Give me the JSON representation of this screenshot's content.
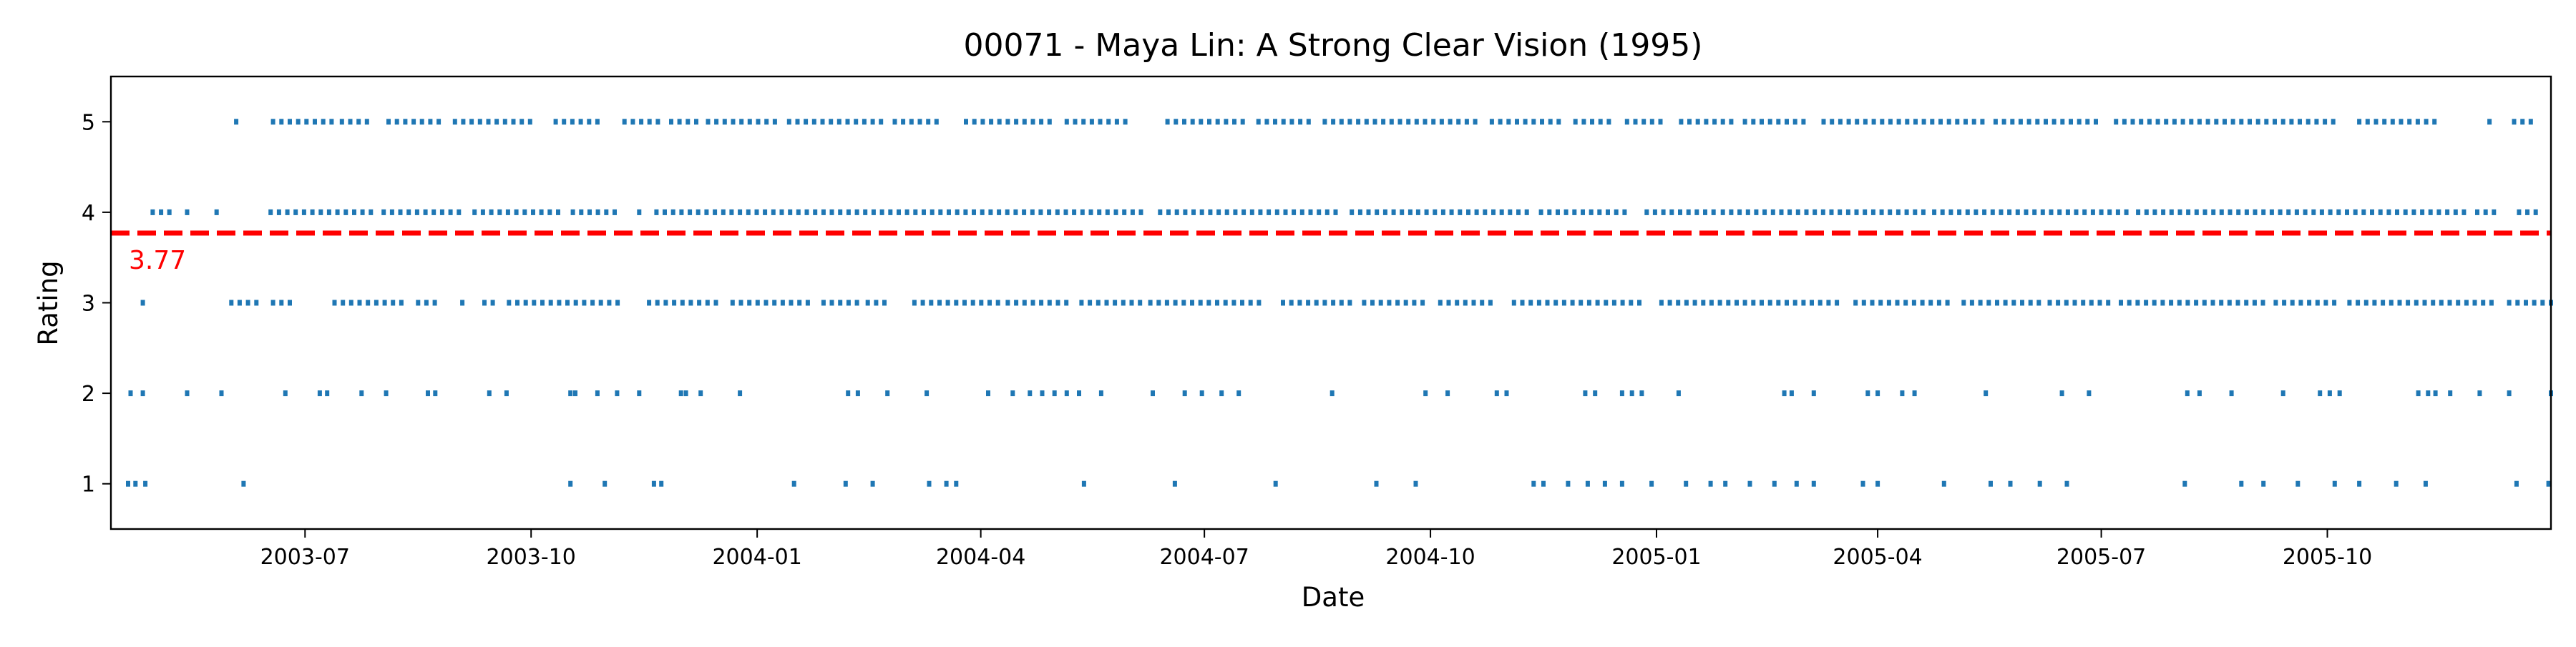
{
  "chart_data": {
    "type": "scatter",
    "title": "00071 - Maya Lin: A Strong Clear Vision (1995)",
    "xlabel": "Date",
    "ylabel": "Rating",
    "xlim": [
      "2003-04-13",
      "2005-12-31"
    ],
    "ylim": [
      0.5,
      5.5
    ],
    "x_ticks": [
      "2003-07",
      "2003-10",
      "2004-01",
      "2004-04",
      "2004-07",
      "2004-10",
      "2005-01",
      "2005-04",
      "2005-07",
      "2005-10"
    ],
    "y_ticks": [
      1,
      2,
      3,
      4,
      5
    ],
    "grid": false,
    "point_color": "#1f77b4",
    "mean": {
      "value": 3.77,
      "label": "3.77",
      "color": "#ff0000",
      "style": "dashed"
    },
    "series": [
      {
        "rating": 5,
        "ranges": [
          [
            "2003-06-03",
            "2003-06-03"
          ],
          [
            "2003-06-18",
            "2003-07-12"
          ],
          [
            "2003-07-16",
            "2003-07-28"
          ],
          [
            "2003-08-04",
            "2003-08-27"
          ],
          [
            "2003-08-31",
            "2003-10-01"
          ],
          [
            "2003-10-11",
            "2003-10-28"
          ],
          [
            "2003-11-08",
            "2003-11-22"
          ],
          [
            "2003-11-27",
            "2003-12-09"
          ],
          [
            "2003-12-12",
            "2004-01-09"
          ],
          [
            "2004-01-14",
            "2004-02-21"
          ],
          [
            "2004-02-26",
            "2004-03-15"
          ],
          [
            "2004-03-26",
            "2004-05-01"
          ],
          [
            "2004-05-06",
            "2004-06-01"
          ],
          [
            "2004-06-16",
            "2004-07-18"
          ],
          [
            "2004-07-23",
            "2004-08-14"
          ],
          [
            "2004-08-19",
            "2004-10-21"
          ],
          [
            "2004-10-26",
            "2004-11-23"
          ],
          [
            "2004-11-29",
            "2004-12-13"
          ],
          [
            "2004-12-20",
            "2005-01-04"
          ],
          [
            "2005-01-11",
            "2005-02-01"
          ],
          [
            "2005-02-06",
            "2005-03-05"
          ],
          [
            "2005-03-10",
            "2005-05-14"
          ],
          [
            "2005-05-19",
            "2005-07-01"
          ],
          [
            "2005-07-07",
            "2005-10-04"
          ],
          [
            "2005-10-14",
            "2005-11-14"
          ],
          [
            "2005-12-06",
            "2005-12-06"
          ],
          [
            "2005-12-16",
            "2005-12-25"
          ]
        ]
      },
      {
        "rating": 4,
        "ranges": [
          [
            "2003-04-30",
            "2003-05-08"
          ],
          [
            "2003-05-14",
            "2003-05-14"
          ],
          [
            "2003-05-26",
            "2003-05-26"
          ],
          [
            "2003-06-17",
            "2003-07-29"
          ],
          [
            "2003-08-02",
            "2003-09-04"
          ],
          [
            "2003-09-08",
            "2003-10-13"
          ],
          [
            "2003-10-18",
            "2003-11-04"
          ],
          [
            "2003-11-14",
            "2003-11-14"
          ],
          [
            "2003-11-21",
            "2004-06-08"
          ],
          [
            "2004-06-13",
            "2004-08-25"
          ],
          [
            "2004-08-30",
            "2004-09-23"
          ],
          [
            "2004-09-26",
            "2004-11-11"
          ],
          [
            "2004-11-15",
            "2004-12-20"
          ],
          [
            "2004-12-28",
            "2005-01-25"
          ],
          [
            "2005-01-28",
            "2005-04-20"
          ],
          [
            "2005-04-24",
            "2005-07-12"
          ],
          [
            "2005-07-16",
            "2005-10-23"
          ],
          [
            "2005-10-26",
            "2005-11-26"
          ],
          [
            "2005-12-01",
            "2005-12-09"
          ],
          [
            "2005-12-18",
            "2005-12-28"
          ]
        ]
      },
      {
        "rating": 3,
        "ranges": [
          [
            "2003-04-26",
            "2003-04-26"
          ],
          [
            "2003-06-01",
            "2003-06-14"
          ],
          [
            "2003-06-18",
            "2003-06-26"
          ],
          [
            "2003-07-13",
            "2003-08-10"
          ],
          [
            "2003-08-16",
            "2003-08-26"
          ],
          [
            "2003-09-03",
            "2003-09-06"
          ],
          [
            "2003-09-12",
            "2003-09-16"
          ],
          [
            "2003-09-22",
            "2003-11-07"
          ],
          [
            "2003-11-18",
            "2003-12-16"
          ],
          [
            "2003-12-22",
            "2004-01-23"
          ],
          [
            "2004-01-28",
            "2004-02-11"
          ],
          [
            "2004-02-15",
            "2004-02-22"
          ],
          [
            "2004-03-05",
            "2004-04-08"
          ],
          [
            "2004-04-12",
            "2004-05-06"
          ],
          [
            "2004-05-12",
            "2004-06-06"
          ],
          [
            "2004-06-09",
            "2004-07-26"
          ],
          [
            "2004-08-02",
            "2004-08-31"
          ],
          [
            "2004-09-04",
            "2004-09-28"
          ],
          [
            "2004-10-05",
            "2004-10-28"
          ],
          [
            "2004-11-04",
            "2004-12-28"
          ],
          [
            "2005-01-03",
            "2005-03-17"
          ],
          [
            "2005-03-23",
            "2005-05-02"
          ],
          [
            "2005-05-06",
            "2005-06-06"
          ],
          [
            "2005-06-10",
            "2005-07-05"
          ],
          [
            "2005-07-09",
            "2005-09-06"
          ],
          [
            "2005-09-10",
            "2005-10-04"
          ],
          [
            "2005-10-10",
            "2005-12-09"
          ],
          [
            "2005-12-14",
            "2005-12-31"
          ]
        ]
      },
      {
        "rating": 2,
        "dates": [
          "2003-04-21",
          "2003-04-26",
          "2003-05-14",
          "2003-05-28",
          "2003-06-23",
          "2003-07-07",
          "2003-07-10",
          "2003-07-24",
          "2003-08-03",
          "2003-08-20",
          "2003-08-23",
          "2003-09-14",
          "2003-09-21",
          "2003-10-17",
          "2003-10-19",
          "2003-10-28",
          "2003-11-05",
          "2003-11-14",
          "2003-12-01",
          "2003-12-03",
          "2003-12-09",
          "2003-12-25",
          "2004-02-07",
          "2004-02-11",
          "2004-02-23",
          "2004-03-10",
          "2004-04-04",
          "2004-04-14",
          "2004-04-21",
          "2004-04-26",
          "2004-05-01",
          "2004-05-06",
          "2004-05-11",
          "2004-05-20",
          "2004-06-10",
          "2004-06-23",
          "2004-06-30",
          "2004-07-08",
          "2004-07-15",
          "2004-08-22",
          "2004-09-29",
          "2004-10-08",
          "2004-10-28",
          "2004-11-01",
          "2004-12-03",
          "2004-12-07",
          "2004-12-18",
          "2004-12-22",
          "2004-12-26",
          "2005-01-10",
          "2005-02-22",
          "2005-02-25",
          "2005-03-06",
          "2005-03-28",
          "2005-04-01",
          "2005-04-11",
          "2005-04-16",
          "2005-05-15",
          "2005-06-15",
          "2005-06-26",
          "2005-08-05",
          "2005-08-10",
          "2005-08-23",
          "2005-09-13",
          "2005-09-28",
          "2005-10-02",
          "2005-10-06",
          "2005-11-07",
          "2005-11-11",
          "2005-11-14",
          "2005-11-20",
          "2005-12-02",
          "2005-12-14",
          "2005-12-31"
        ]
      },
      {
        "rating": 1,
        "dates": [
          "2003-04-20",
          "2003-04-23",
          "2003-04-27",
          "2003-06-06",
          "2003-10-17",
          "2003-10-31",
          "2003-11-20",
          "2003-11-23",
          "2004-01-16",
          "2004-02-06",
          "2004-02-17",
          "2004-03-11",
          "2004-03-18",
          "2004-03-22",
          "2004-05-13",
          "2004-06-19",
          "2004-07-30",
          "2004-09-09",
          "2004-09-25",
          "2004-11-12",
          "2004-11-16",
          "2004-11-26",
          "2004-12-04",
          "2004-12-11",
          "2004-12-18",
          "2004-12-30",
          "2005-01-13",
          "2005-01-23",
          "2005-01-29",
          "2005-02-08",
          "2005-02-18",
          "2005-02-27",
          "2005-03-06",
          "2005-03-26",
          "2005-04-01",
          "2005-04-28",
          "2005-05-17",
          "2005-05-25",
          "2005-06-06",
          "2005-06-17",
          "2005-08-04",
          "2005-08-27",
          "2005-09-05",
          "2005-09-19",
          "2005-10-04",
          "2005-10-14",
          "2005-10-29",
          "2005-11-10",
          "2005-12-17",
          "2005-12-30"
        ]
      }
    ]
  }
}
